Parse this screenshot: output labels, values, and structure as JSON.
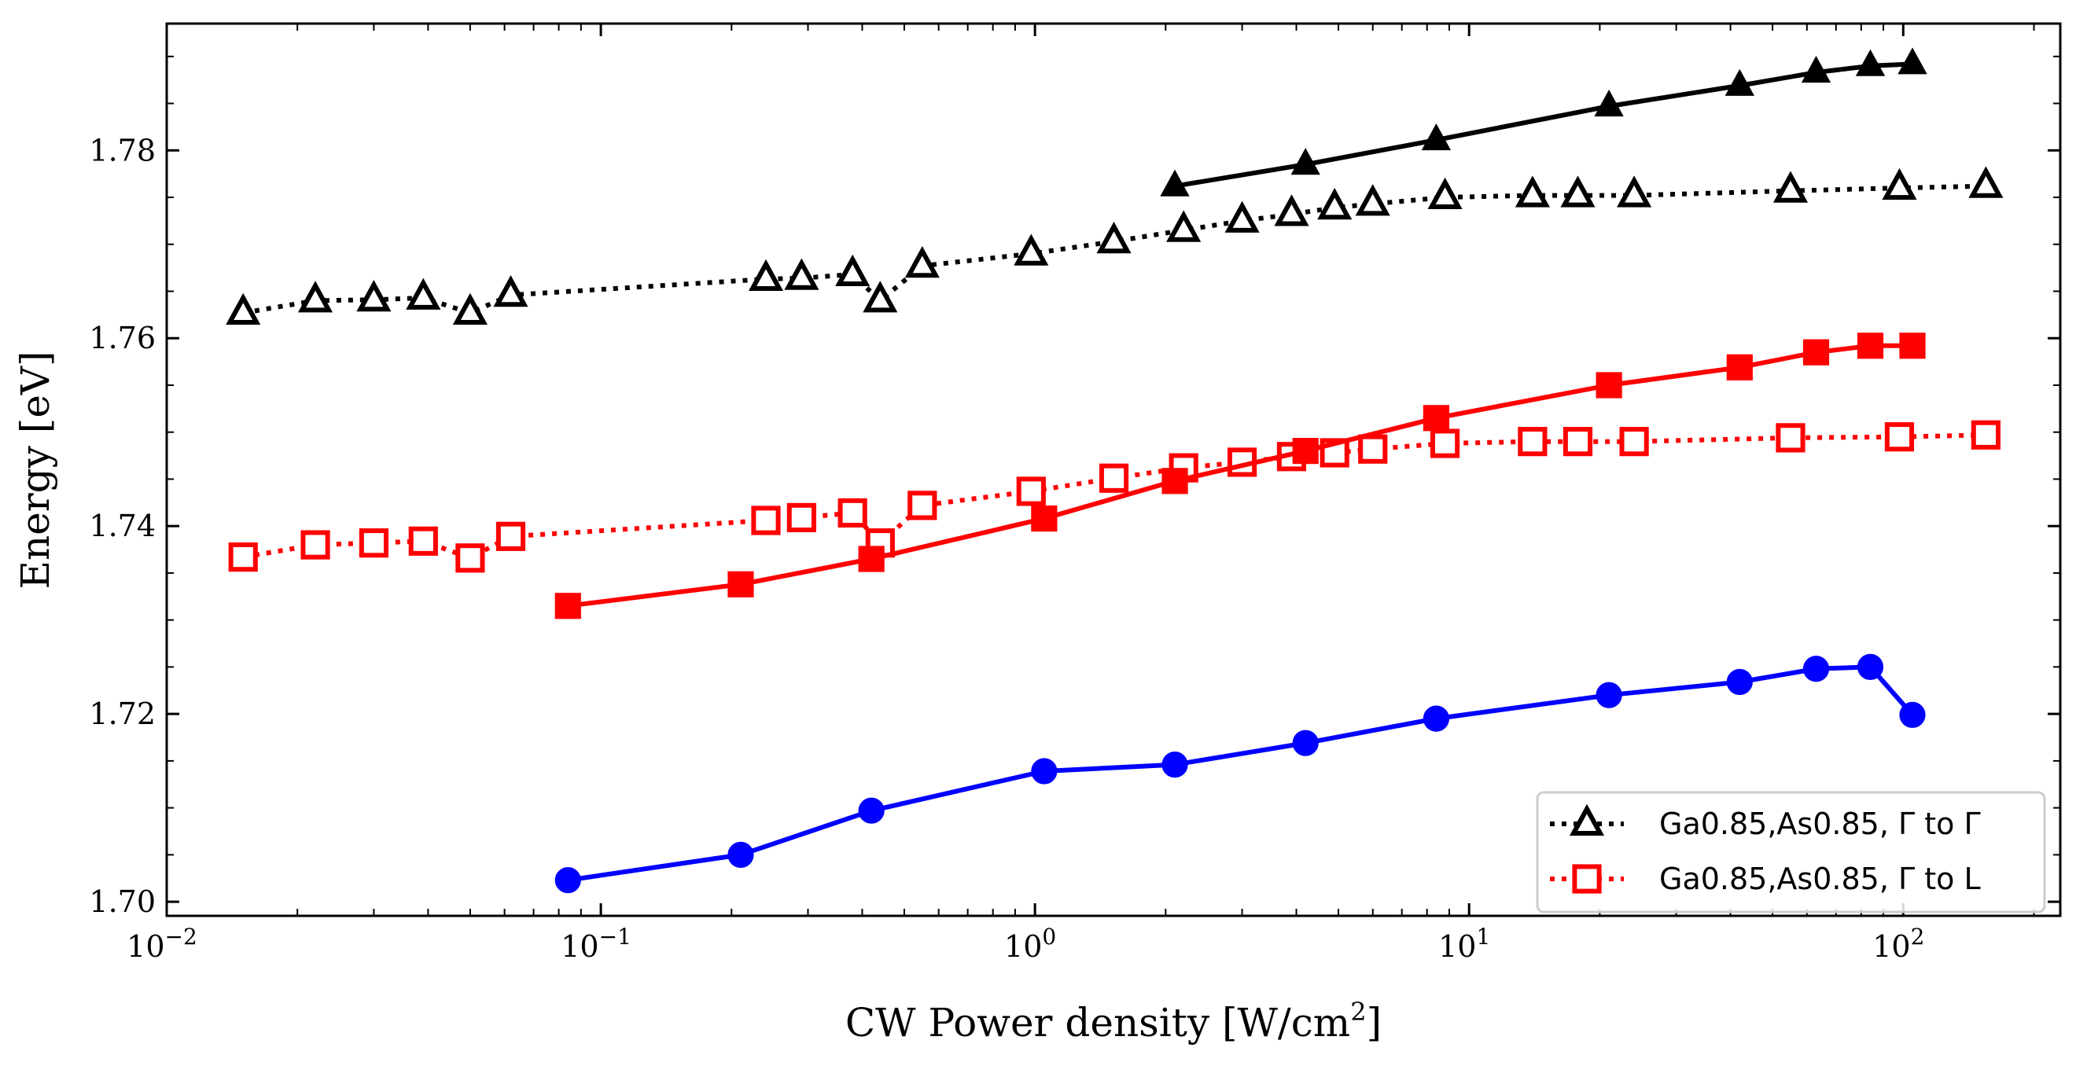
{
  "chart_data": {
    "type": "line",
    "title": "",
    "xlabel": "CW Power density [W/cm²]",
    "xlabel_main": "CW Power density [W/cm",
    "xlabel_sup": "2",
    "xlabel_end": "]",
    "ylabel": "Energy [eV]",
    "x_scale": "log",
    "xlim": [
      0.01,
      230
    ],
    "ylim": [
      1.6985,
      1.7935
    ],
    "grid": false,
    "legend_position": "lower-right",
    "x_ticks": [
      {
        "value": 0.01,
        "base": "10",
        "exp": "−2"
      },
      {
        "value": 0.1,
        "base": "10",
        "exp": "−1"
      },
      {
        "value": 1,
        "base": "10",
        "exp": "0"
      },
      {
        "value": 10,
        "base": "10",
        "exp": "1"
      },
      {
        "value": 100,
        "base": "10",
        "exp": "2"
      }
    ],
    "y_ticks": [
      {
        "value": 1.7,
        "label": "1.70"
      },
      {
        "value": 1.72,
        "label": "1.72"
      },
      {
        "value": 1.74,
        "label": "1.74"
      },
      {
        "value": 1.76,
        "label": "1.76"
      },
      {
        "value": 1.78,
        "label": "1.78"
      }
    ],
    "series": [
      {
        "name": "Ga0.85,As0.85, Γ to Γ",
        "legend": true,
        "color": "#000000",
        "marker": "triangle",
        "filled": false,
        "linestyle": "dotted",
        "x": [
          0.015,
          0.022,
          0.03,
          0.039,
          0.05,
          0.062,
          0.24,
          0.29,
          0.38,
          0.44,
          0.55,
          0.98,
          1.52,
          2.2,
          3.0,
          3.9,
          4.9,
          6.0,
          8.8,
          14.0,
          17.8,
          24.0,
          55.0,
          98.0,
          155.0
        ],
        "y": [
          1.7627,
          1.764,
          1.7641,
          1.7643,
          1.7627,
          1.7646,
          1.7663,
          1.7664,
          1.7668,
          1.764,
          1.7677,
          1.769,
          1.7703,
          1.7715,
          1.7725,
          1.7732,
          1.7739,
          1.7743,
          1.775,
          1.7752,
          1.7752,
          1.7752,
          1.7757,
          1.776,
          1.7762
        ]
      },
      {
        "name": "Ga0.85,As0.85, Γ to L",
        "legend": true,
        "color": "#ff0000",
        "marker": "square",
        "filled": false,
        "linestyle": "dotted",
        "x": [
          0.015,
          0.022,
          0.03,
          0.039,
          0.05,
          0.062,
          0.24,
          0.29,
          0.38,
          0.44,
          0.55,
          0.98,
          1.52,
          2.2,
          3.0,
          3.9,
          4.9,
          6.0,
          8.8,
          14.0,
          17.8,
          24.0,
          55.0,
          98.0,
          155.0
        ],
        "y": [
          1.7367,
          1.738,
          1.7382,
          1.7384,
          1.7366,
          1.7389,
          1.7406,
          1.7409,
          1.7414,
          1.7382,
          1.7422,
          1.7437,
          1.7451,
          1.7462,
          1.7468,
          1.7474,
          1.7478,
          1.7482,
          1.7488,
          1.749,
          1.749,
          1.749,
          1.7494,
          1.7495,
          1.7497
        ]
      },
      {
        "name": "",
        "legend": false,
        "color": "#000000",
        "marker": "triangle",
        "filled": true,
        "linestyle": "solid",
        "x": [
          2.1,
          4.2,
          8.4,
          21.0,
          42.0,
          63.0,
          84.0,
          105.0
        ],
        "y": [
          1.7762,
          1.7785,
          1.7811,
          1.7847,
          1.7869,
          1.7883,
          1.789,
          1.7892
        ]
      },
      {
        "name": "",
        "legend": false,
        "color": "#ff0000",
        "marker": "square",
        "filled": true,
        "linestyle": "solid",
        "x": [
          0.084,
          0.21,
          0.42,
          1.05,
          2.1,
          4.2,
          8.4,
          21.0,
          42.0,
          63.0,
          84.0,
          105.0
        ],
        "y": [
          1.7315,
          1.7338,
          1.7365,
          1.7408,
          1.7448,
          1.748,
          1.7515,
          1.755,
          1.7569,
          1.7585,
          1.7592,
          1.7592
        ]
      },
      {
        "name": "",
        "legend": false,
        "color": "#0000ff",
        "marker": "circle",
        "filled": true,
        "linestyle": "solid",
        "x": [
          0.084,
          0.21,
          0.42,
          1.05,
          2.1,
          4.2,
          8.4,
          21.0,
          42.0,
          63.0,
          84.0,
          105.0
        ],
        "y": [
          1.7023,
          1.705,
          1.7097,
          1.7139,
          1.7146,
          1.7169,
          1.7195,
          1.722,
          1.7234,
          1.7248,
          1.725,
          1.7199
        ]
      }
    ]
  }
}
